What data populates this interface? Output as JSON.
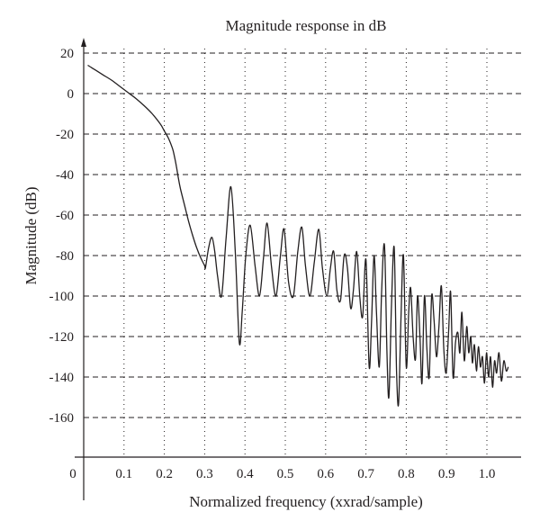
{
  "chart_data": {
    "type": "line",
    "title": "Magnitude response in dB",
    "xlabel": "Normalized frequency (xxrad/sample)",
    "ylabel": "Magnitude (dB)",
    "xlim": [
      0,
      1.08
    ],
    "ylim": [
      -180,
      22
    ],
    "x_ticks": [
      0.1,
      0.2,
      0.3,
      0.4,
      0.5,
      0.6,
      0.7,
      0.8,
      0.9,
      1.0
    ],
    "x_tick_labels": [
      "0.1",
      "0.2",
      "0.3",
      "0.4",
      "0.5",
      "0.6",
      "0.7",
      "0.8",
      "0.9",
      "1.0"
    ],
    "x_origin_label": "0",
    "y_ticks": [
      20,
      0,
      -20,
      -40,
      -60,
      -80,
      -100,
      -120,
      -140,
      -160
    ],
    "y_tick_labels": [
      "20",
      "0",
      "-20",
      "-40",
      "-60",
      "-80",
      "-100",
      "-120",
      "-140",
      "-160"
    ],
    "grid": {
      "horizontal": "dashed",
      "vertical": "dotted"
    },
    "line_color": "#231f20",
    "series": [
      {
        "x": [
          0.01,
          0.03,
          0.05,
          0.07,
          0.09,
          0.11,
          0.13,
          0.15,
          0.17,
          0.19,
          0.2,
          0.21,
          0.22,
          0.225,
          0.23,
          0.235,
          0.24,
          0.25,
          0.26,
          0.27,
          0.28,
          0.29,
          0.3,
          0.302,
          0.31,
          0.318,
          0.325,
          0.332,
          0.342,
          0.353,
          0.365,
          0.376,
          0.386,
          0.393,
          0.402,
          0.413,
          0.425,
          0.436,
          0.446,
          0.455,
          0.466,
          0.477,
          0.488,
          0.497,
          0.508,
          0.52,
          0.531,
          0.541,
          0.55,
          0.561,
          0.572,
          0.583,
          0.592,
          0.603,
          0.612,
          0.62,
          0.628,
          0.637,
          0.646,
          0.654,
          0.662,
          0.669,
          0.677,
          0.685,
          0.692,
          0.7,
          0.708,
          0.714,
          0.72,
          0.726,
          0.733,
          0.739,
          0.746,
          0.752,
          0.757,
          0.763,
          0.77,
          0.776,
          0.781,
          0.787,
          0.793,
          0.8,
          0.806,
          0.811,
          0.817,
          0.823,
          0.828,
          0.834,
          0.839,
          0.845,
          0.851,
          0.857,
          0.863,
          0.869,
          0.875,
          0.881,
          0.887,
          0.893,
          0.899,
          0.905,
          0.91,
          0.916,
          0.922,
          0.928,
          0.933,
          0.938,
          0.944,
          0.95,
          0.955,
          0.96,
          0.964,
          0.969,
          0.974,
          0.979,
          0.984,
          0.989,
          0.994,
          0.999,
          1.004,
          1.009,
          1.014,
          1.019,
          1.024,
          1.03,
          1.036,
          1.042,
          1.048,
          1.053
        ],
        "y": [
          14,
          11.5,
          9,
          6.5,
          3.5,
          0.5,
          -2.5,
          -6,
          -10,
          -15,
          -18.5,
          -22,
          -27,
          -31,
          -36,
          -42,
          -47,
          -55,
          -63,
          -70,
          -76,
          -81,
          -85,
          -86,
          -76,
          -71,
          -78,
          -90,
          -100,
          -72,
          -46,
          -78,
          -123,
          -108,
          -80,
          -65,
          -85,
          -100,
          -81,
          -64,
          -86,
          -100,
          -80,
          -67,
          -93,
          -100,
          -78,
          -66,
          -85,
          -100,
          -83,
          -67,
          -86,
          -100,
          -86,
          -78,
          -97,
          -102,
          -80,
          -86,
          -106,
          -97,
          -78,
          -101,
          -110,
          -82,
          -135,
          -112,
          -80,
          -107,
          -135,
          -97,
          -75,
          -127,
          -150,
          -107,
          -76,
          -137,
          -153,
          -110,
          -80,
          -135,
          -108,
          -96,
          -120,
          -131,
          -100,
          -120,
          -143,
          -100,
          -125,
          -140,
          -100,
          -112,
          -130,
          -115,
          -95,
          -126,
          -138,
          -118,
          -98,
          -140,
          -123,
          -118,
          -128,
          -108,
          -132,
          -115,
          -128,
          -120,
          -133,
          -124,
          -137,
          -125,
          -135,
          -130,
          -143,
          -128,
          -140,
          -130,
          -145,
          -132,
          -138,
          -128,
          -142,
          -132,
          -137,
          -135
        ]
      }
    ]
  }
}
